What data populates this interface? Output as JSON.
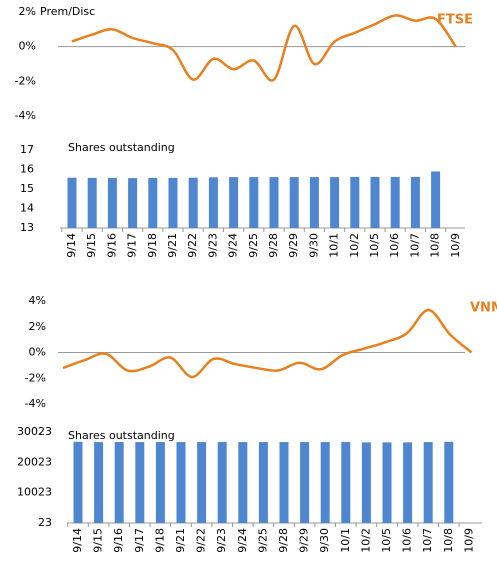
{
  "chart_data": [
    {
      "type": "line",
      "title": "Prem/Disc",
      "series": [
        {
          "name": "FTSE",
          "color": "#e8801e",
          "values": [
            0.3,
            0.7,
            1.0,
            0.5,
            0.2,
            -0.2,
            -1.9,
            -0.7,
            -1.3,
            -0.8,
            -1.9,
            1.2,
            -1.0,
            0.3,
            0.8,
            1.3,
            1.8,
            1.5,
            1.6,
            0.0
          ]
        }
      ],
      "ylim": [
        -4,
        2
      ],
      "yticks": [
        {
          "value": 2,
          "label": "2%"
        },
        {
          "value": 0,
          "label": "0%"
        },
        {
          "value": -2,
          "label": "-2%"
        },
        {
          "value": -4,
          "label": "-4%"
        }
      ]
    },
    {
      "type": "bar",
      "title": "Shares outstanding",
      "color": "#4f86d0",
      "categories": [
        "9/14",
        "9/15",
        "9/16",
        "9/17",
        "9/18",
        "9/21",
        "9/22",
        "9/23",
        "9/24",
        "9/25",
        "9/28",
        "9/29",
        "9/30",
        "10/1",
        "10/2",
        "10/5",
        "10/6",
        "10/7",
        "10/8",
        "10/9"
      ],
      "values": [
        15.58,
        15.57,
        15.57,
        15.56,
        15.57,
        15.57,
        15.58,
        15.6,
        15.61,
        15.61,
        15.61,
        15.61,
        15.61,
        15.61,
        15.62,
        15.62,
        15.62,
        15.62,
        15.9,
        null
      ],
      "ylim": [
        13,
        17
      ],
      "yticks": [
        17,
        16,
        15,
        14,
        13
      ]
    },
    {
      "type": "line",
      "series": [
        {
          "name": "VNM",
          "color": "#e8801e",
          "values": [
            -1.2,
            -0.6,
            -0.1,
            -1.4,
            -1.1,
            -0.4,
            -1.9,
            -0.5,
            -0.9,
            -1.2,
            -1.4,
            -0.8,
            -1.3,
            -0.2,
            0.3,
            0.8,
            1.5,
            3.3,
            1.4,
            0.0
          ]
        }
      ],
      "ylim": [
        -4,
        4
      ],
      "yticks": [
        {
          "value": 4,
          "label": "4%"
        },
        {
          "value": 2,
          "label": "2%"
        },
        {
          "value": 0,
          "label": "0%"
        },
        {
          "value": -2,
          "label": "-2%"
        },
        {
          "value": -4,
          "label": "-4%"
        }
      ]
    },
    {
      "type": "bar",
      "title": "Shares outstanding",
      "color": "#4f86d0",
      "categories": [
        "9/14",
        "9/15",
        "9/16",
        "9/17",
        "9/18",
        "9/21",
        "9/22",
        "9/23",
        "9/24",
        "9/25",
        "9/28",
        "9/29",
        "9/30",
        "10/1",
        "10/2",
        "10/5",
        "10/6",
        "10/7",
        "10/8",
        "10/9"
      ],
      "values": [
        26800,
        26700,
        26700,
        26700,
        26700,
        26700,
        26700,
        26700,
        26700,
        26700,
        26700,
        26700,
        26700,
        26700,
        26600,
        26600,
        26600,
        26700,
        26800,
        null
      ],
      "ylim": [
        23,
        30023
      ],
      "yticks": [
        30023,
        20023,
        10023,
        23
      ]
    }
  ]
}
